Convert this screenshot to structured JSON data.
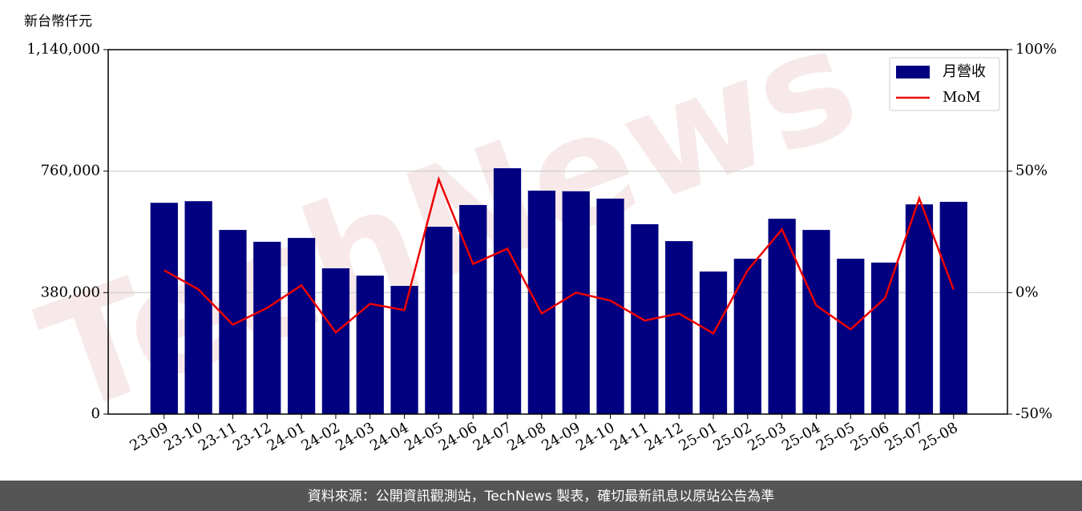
{
  "chart_data": {
    "type": "bar_line",
    "ylabel": "新台幣仟元",
    "watermark": "TechNews",
    "source": "資料來源：公開資訊觀測站，TechNews 製表，確切最新訊息以原站公告為準",
    "categories": [
      "23-09",
      "23-10",
      "23-11",
      "23-12",
      "24-01",
      "24-02",
      "24-03",
      "24-04",
      "24-05",
      "24-06",
      "24-07",
      "24-08",
      "24-09",
      "24-10",
      "24-11",
      "24-12",
      "25-01",
      "25-02",
      "25-03",
      "25-04",
      "25-05",
      "25-06",
      "25-07",
      "25-08"
    ],
    "series": [
      {
        "name": "月營收",
        "type": "bar",
        "color": "#000080",
        "values": [
          661000,
          666000,
          576000,
          539000,
          551000,
          456000,
          433000,
          401000,
          586000,
          654000,
          769000,
          699000,
          697000,
          674000,
          594000,
          541000,
          446000,
          486000,
          611000,
          576000,
          486000,
          474000,
          656000,
          664000
        ]
      },
      {
        "name": "MoM",
        "type": "line",
        "color": "#ee0000",
        "axis": "y2",
        "values": [
          9.2,
          1.3,
          -13.2,
          -6.3,
          3.0,
          -16.4,
          -4.6,
          -7.2,
          46.7,
          11.8,
          18.1,
          -8.6,
          0,
          -3.3,
          -11.5,
          -8.6,
          -16.8,
          9.2,
          26.0,
          -5.3,
          -15.1,
          -2.3,
          38.8,
          1.3
        ]
      }
    ],
    "ylim": [
      0,
      1140000
    ],
    "yticks": [
      0,
      {
        "value": 380000,
        "label": "380,000"
      },
      {
        "value": 760000,
        "label": "760,000"
      },
      {
        "value": 1140000,
        "label": "1,140,000"
      }
    ],
    "y2lim": [
      -50,
      100
    ],
    "y2ticks": [
      {
        "value": -50,
        "label": "-50%"
      },
      {
        "value": 0,
        "label": "0%"
      },
      {
        "value": 50,
        "label": "50%"
      },
      {
        "value": 100,
        "label": "100%"
      }
    ],
    "grid": true,
    "legend": "upper right"
  }
}
